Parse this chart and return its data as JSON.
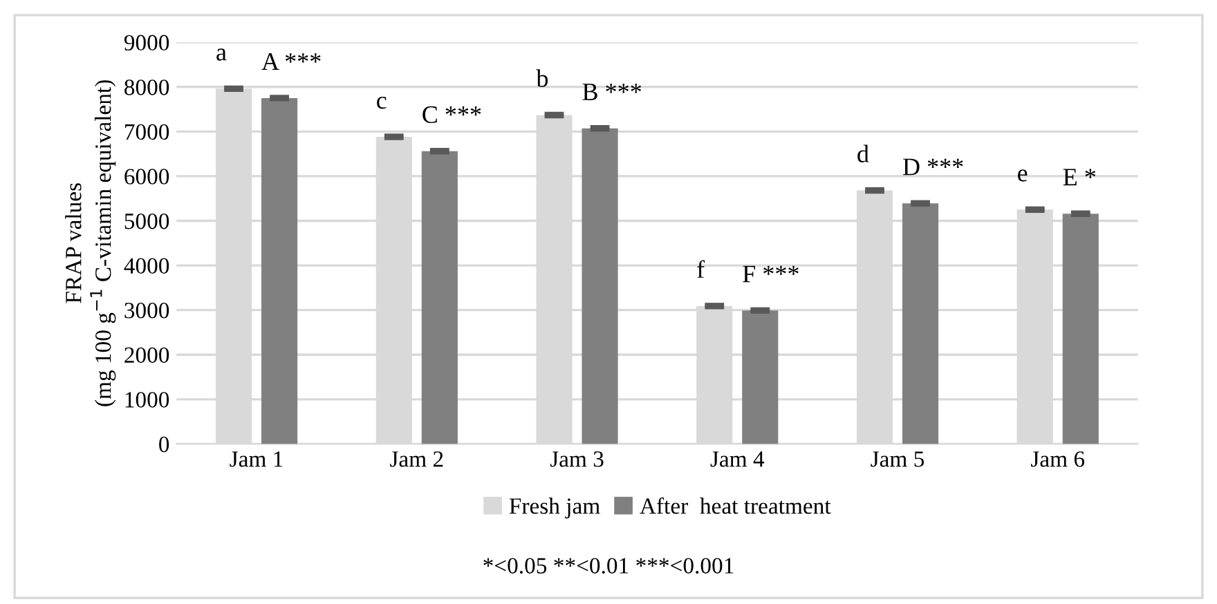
{
  "chart_data": {
    "type": "bar",
    "ylabel": "FRAP values\n(mg 100 g$^{−1}$ C-vitamin equivalent)",
    "categories": [
      "Jam 1",
      "Jam 2",
      "Jam 3",
      "Jam 4",
      "Jam 5",
      "Jam 6"
    ],
    "series": [
      {
        "name": "Fresh jam",
        "color": "#d9d9d9",
        "values": [
          7960,
          6880,
          7370,
          3090,
          5680,
          5250
        ],
        "errors": [
          30,
          30,
          30,
          30,
          30,
          30
        ],
        "value_labels": [
          "a",
          "c",
          "b",
          "f",
          "d",
          "e"
        ]
      },
      {
        "name": "After  heat treatment",
        "color": "#808080",
        "values": [
          7750,
          6560,
          7070,
          2990,
          5390,
          5160
        ],
        "errors": [
          30,
          30,
          30,
          30,
          30,
          30
        ],
        "value_labels": [
          "A ***",
          "C ***",
          "B ***",
          "F ***",
          "D ***",
          "E *"
        ]
      }
    ],
    "ylim": [
      0,
      9000
    ],
    "yticks": [
      0,
      1000,
      2000,
      3000,
      4000,
      5000,
      6000,
      7000,
      8000,
      9000
    ],
    "grid": "y",
    "legend": "bottom",
    "annotations": [
      "*<0.05 **<0.01 ***<0.001"
    ]
  }
}
